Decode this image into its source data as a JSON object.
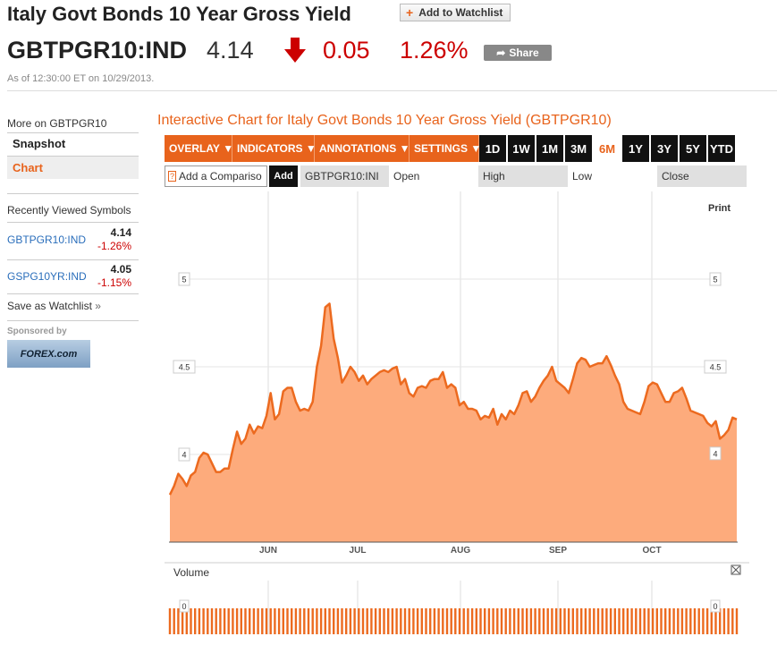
{
  "header": {
    "title": "Italy Govt Bonds 10 Year Gross Yield",
    "watchlist_label": "Add to Watchlist",
    "ticker": "GBTPGR10:IND",
    "price": "4.14",
    "change": "0.05",
    "change_pct": "1.26%",
    "share_label": "Share",
    "as_of": "As of 12:30:00 ET on 10/29/2013.",
    "down_color": "#cc0000"
  },
  "sidebar": {
    "more_on": "More on GBTPGR10",
    "snapshot": "Snapshot",
    "chart": "Chart",
    "recent_title": "Recently Viewed Symbols",
    "recent": [
      {
        "name": "GBTPGR10:IND",
        "value": "4.14",
        "change": "-1.26%"
      },
      {
        "name": "GSPG10YR:IND",
        "value": "4.05",
        "change": "-1.15%"
      }
    ],
    "save_watchlist": "Save as Watchlist",
    "sponsored_by": "Sponsored by",
    "sponsor_logo": "FOREX.com"
  },
  "chart_panel": {
    "heading": "Interactive Chart for Italy Govt Bonds 10 Year Gross Yield (GBTPGR10)",
    "menus": [
      "OVERLAY",
      "INDICATORS",
      "ANNOTATIONS",
      "SETTINGS"
    ],
    "periods": [
      "1D",
      "1W",
      "1M",
      "3M",
      "6M",
      "1Y",
      "3Y",
      "5Y",
      "YTD"
    ],
    "active_period": "6M",
    "compare_placeholder": "Add a Compariso",
    "compare_help": "?",
    "add_label": "Add",
    "symbol": "GBTPGR10:INI",
    "open_label": "Open",
    "high_label": "High",
    "low_label": "Low",
    "close_label": "Close",
    "print_label": "Print",
    "volume_label": "Volume",
    "accent": "#e8631c"
  },
  "chart_data": {
    "type": "area",
    "x_tick_labels": [
      "JUN",
      "JUL",
      "AUG",
      "SEP",
      "OCT"
    ],
    "y_tick_labels": [
      "5",
      "4.5",
      "4"
    ],
    "y_ticks": [
      5,
      4.5,
      4
    ],
    "ylim": [
      3.5,
      5.5
    ],
    "last_value_label": "4",
    "grid": true,
    "values": [
      3.77,
      3.82,
      3.89,
      3.86,
      3.82,
      3.88,
      3.9,
      3.98,
      4.01,
      4.0,
      3.95,
      3.9,
      3.9,
      3.92,
      3.92,
      4.03,
      4.13,
      4.06,
      4.09,
      4.17,
      4.12,
      4.16,
      4.15,
      4.22,
      4.35,
      4.2,
      4.23,
      4.36,
      4.38,
      4.38,
      4.3,
      4.25,
      4.26,
      4.25,
      4.3,
      4.5,
      4.62,
      4.84,
      4.86,
      4.66,
      4.55,
      4.41,
      4.45,
      4.5,
      4.47,
      4.42,
      4.45,
      4.4,
      4.43,
      4.45,
      4.47,
      4.48,
      4.47,
      4.49,
      4.5,
      4.4,
      4.43,
      4.35,
      4.33,
      4.38,
      4.39,
      4.38,
      4.42,
      4.43,
      4.43,
      4.47,
      4.38,
      4.4,
      4.38,
      4.28,
      4.3,
      4.26,
      4.26,
      4.25,
      4.2,
      4.22,
      4.21,
      4.26,
      4.17,
      4.23,
      4.2,
      4.25,
      4.23,
      4.28,
      4.35,
      4.36,
      4.3,
      4.33,
      4.38,
      4.42,
      4.45,
      4.5,
      4.42,
      4.4,
      4.38,
      4.35,
      4.43,
      4.52,
      4.55,
      4.54,
      4.5,
      4.51,
      4.52,
      4.52,
      4.56,
      4.51,
      4.45,
      4.4,
      4.3,
      4.26,
      4.25,
      4.24,
      4.23,
      4.3,
      4.39,
      4.41,
      4.4,
      4.35,
      4.3,
      4.3,
      4.35,
      4.36,
      4.38,
      4.32,
      4.25,
      4.24,
      4.23,
      4.22,
      4.18,
      4.16,
      4.19,
      4.09,
      4.11,
      4.14,
      4.21,
      4.2
    ],
    "volume_ticks": [
      "0"
    ],
    "volume_values": "0"
  }
}
